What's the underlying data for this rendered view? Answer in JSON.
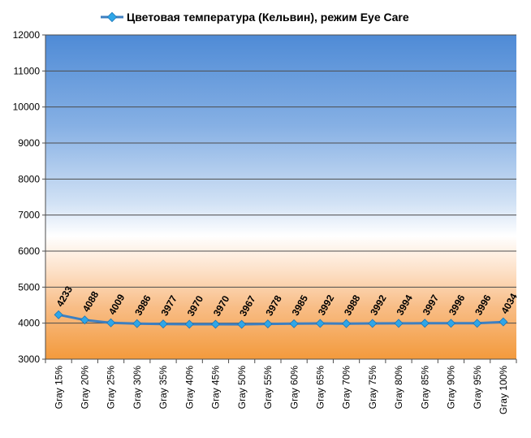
{
  "legend": {
    "label": "Цветовая температура (Кельвин), режим Eye Care"
  },
  "colors": {
    "series_line": "#3d7fc1",
    "marker_fill": "#2fa6e8",
    "grid": "#4d4d4d",
    "axis_text": "#000000",
    "bg_top": "#4f8bd6",
    "bg_white": "#ffffff",
    "bg_bottom": "#f39a3c"
  },
  "chart_data": {
    "type": "line",
    "title": "",
    "xlabel": "",
    "ylabel": "",
    "ylim": [
      3000,
      12000
    ],
    "yticks": [
      3000,
      4000,
      5000,
      6000,
      7000,
      8000,
      9000,
      10000,
      11000,
      12000
    ],
    "grid": "horizontal",
    "legend_position": "top",
    "categories": [
      "Gray 15%",
      "Gray 20%",
      "Gray 25%",
      "Gray 30%",
      "Gray 35%",
      "Gray 40%",
      "Gray 45%",
      "Gray 50%",
      "Gray 55%",
      "Gray 60%",
      "Gray 65%",
      "Gray 70%",
      "Gray 75%",
      "Gray 80%",
      "Gray 85%",
      "Gray 90%",
      "Gray 95%",
      "Gray 100%"
    ],
    "series": [
      {
        "name": "Цветовая температура (Кельвин), режим Eye Care",
        "values": [
          4233,
          4088,
          4009,
          3986,
          3977,
          3970,
          3970,
          3967,
          3978,
          3985,
          3992,
          3988,
          3992,
          3994,
          3997,
          3996,
          3996,
          4034
        ]
      }
    ]
  }
}
